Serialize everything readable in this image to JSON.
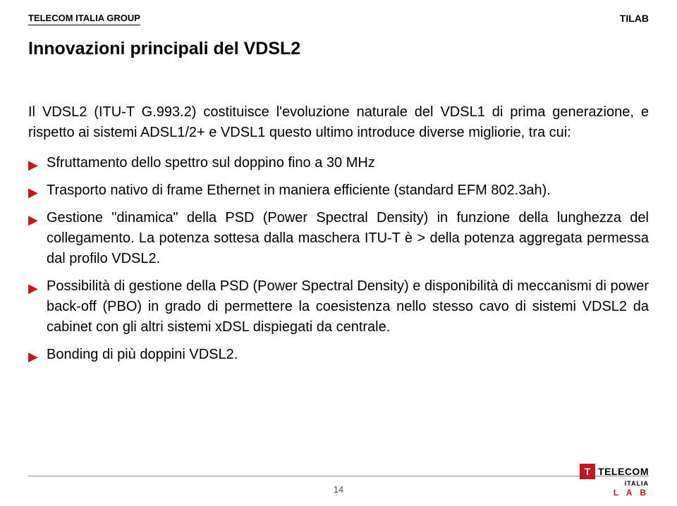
{
  "header": {
    "left": "TELECOM ITALIA GROUP",
    "right": "TILAB"
  },
  "title": "Innovazioni principali del VDSL2",
  "subtitle": "Il VDSL2 (ITU-T G.993.2) costituisce l'evoluzione naturale del VDSL1 di prima generazione, e rispetto ai sistemi ADSL1/2+ e VDSL1 questo ultimo introduce diverse migliorie, tra cui:",
  "subtitle_lead": "Il VDSL2 (ITU-T G.993.",
  "bullets": [
    "Sfruttamento dello spettro sul doppino fino a 30 MHz",
    "Trasporto nativo di frame Ethernet in maniera efficiente (standard EFM 802.3ah).",
    "Gestione \"dinamica\" della PSD (Power Spectral Density) in funzione della lunghezza del collegamento. La potenza sottesa dalla maschera ITU-T è > della potenza aggregata permessa dal profilo VDSL2.",
    "Possibilità di gestione della PSD (Power Spectral Density) e disponibilità di meccanismi di power back-off (PBO) in grado di permettere la coesistenza nello stesso cavo di sistemi VDSL2 da cabinet con gli altri sistemi xDSL dispiegati da centrale.",
    "Bonding di più doppini VDSL2."
  ],
  "page_number": "14",
  "logo": {
    "symbol": "T",
    "brand": "TELECOM",
    "country": "ITALIA",
    "lab": "L A B"
  },
  "colors": {
    "accent": "#c4161c",
    "text": "#000000",
    "line": "#888888"
  },
  "typography": {
    "title_size": 25,
    "body_size": 20,
    "header_size": 13
  }
}
